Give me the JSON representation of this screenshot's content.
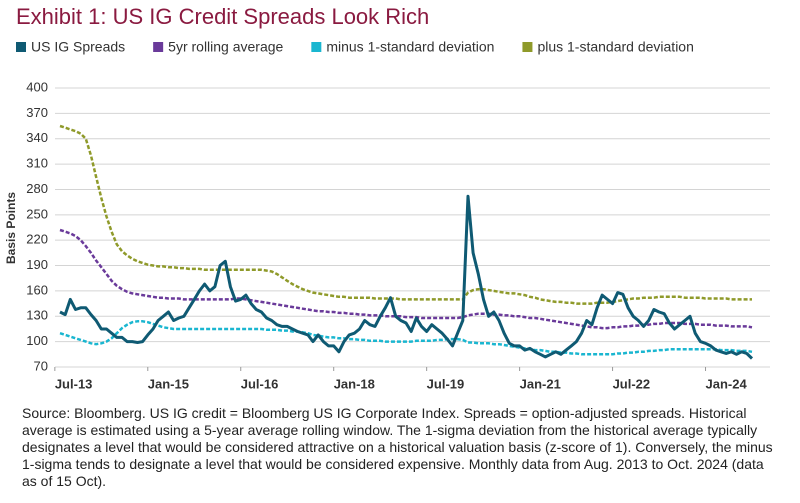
{
  "chart_data": {
    "type": "line",
    "title": "Exhibit 1: US IG Credit Spreads Look Rich",
    "y_label": "Basis Points",
    "note": "Source: Bloomberg. US IG credit = Bloomberg US IG Corporate Index. Spreads = option-adjusted spreads. Historical average is estimated using a 5-year average rolling window. The 1-sigma deviation from the historical average typically designates a level that would be considered attractive on a historical valuation basis (z-score of 1). Conversely, the minus 1-sigma tends to designate a level that would be considered expensive. Monthly data from Aug. 2013 to Oct. 2024 (data as of 15 Oct).",
    "x": [
      "2013-08",
      "2013-09",
      "2013-10",
      "2013-11",
      "2013-12",
      "2014-01",
      "2014-02",
      "2014-03",
      "2014-04",
      "2014-05",
      "2014-06",
      "2014-07",
      "2014-08",
      "2014-09",
      "2014-10",
      "2014-11",
      "2014-12",
      "2015-01",
      "2015-02",
      "2015-03",
      "2015-04",
      "2015-05",
      "2015-06",
      "2015-07",
      "2015-08",
      "2015-09",
      "2015-10",
      "2015-11",
      "2015-12",
      "2016-01",
      "2016-02",
      "2016-03",
      "2016-04",
      "2016-05",
      "2016-06",
      "2016-07",
      "2016-08",
      "2016-09",
      "2016-10",
      "2016-11",
      "2016-12",
      "2017-01",
      "2017-02",
      "2017-03",
      "2017-04",
      "2017-05",
      "2017-06",
      "2017-07",
      "2017-08",
      "2017-09",
      "2017-10",
      "2017-11",
      "2017-12",
      "2018-01",
      "2018-02",
      "2018-03",
      "2018-04",
      "2018-05",
      "2018-06",
      "2018-07",
      "2018-08",
      "2018-09",
      "2018-10",
      "2018-11",
      "2018-12",
      "2019-01",
      "2019-02",
      "2019-03",
      "2019-04",
      "2019-05",
      "2019-06",
      "2019-07",
      "2019-08",
      "2019-09",
      "2019-10",
      "2019-11",
      "2019-12",
      "2020-01",
      "2020-02",
      "2020-03",
      "2020-04",
      "2020-05",
      "2020-06",
      "2020-07",
      "2020-08",
      "2020-09",
      "2020-10",
      "2020-11",
      "2020-12",
      "2021-01",
      "2021-02",
      "2021-03",
      "2021-04",
      "2021-05",
      "2021-06",
      "2021-07",
      "2021-08",
      "2021-09",
      "2021-10",
      "2021-11",
      "2021-12",
      "2022-01",
      "2022-02",
      "2022-03",
      "2022-04",
      "2022-05",
      "2022-06",
      "2022-07",
      "2022-08",
      "2022-09",
      "2022-10",
      "2022-11",
      "2022-12",
      "2023-01",
      "2023-02",
      "2023-03",
      "2023-04",
      "2023-05",
      "2023-06",
      "2023-07",
      "2023-08",
      "2023-09",
      "2023-10",
      "2023-11",
      "2023-12",
      "2024-01",
      "2024-02",
      "2024-03",
      "2024-04",
      "2024-05",
      "2024-06",
      "2024-07",
      "2024-08",
      "2024-09",
      "2024-10"
    ],
    "series": [
      {
        "name": "US IG Spreads",
        "color": "#0f5a73",
        "dashed": false,
        "values": [
          135,
          132,
          150,
          138,
          140,
          140,
          132,
          125,
          115,
          115,
          110,
          105,
          105,
          100,
          100,
          99,
          100,
          108,
          115,
          125,
          130,
          135,
          125,
          128,
          130,
          140,
          150,
          160,
          168,
          160,
          165,
          190,
          195,
          165,
          148,
          150,
          155,
          145,
          138,
          135,
          128,
          125,
          120,
          118,
          118,
          115,
          112,
          110,
          108,
          100,
          108,
          100,
          95,
          95,
          88,
          100,
          108,
          110,
          115,
          125,
          120,
          118,
          130,
          140,
          152,
          130,
          125,
          122,
          112,
          128,
          118,
          112,
          120,
          115,
          110,
          103,
          95,
          110,
          125,
          272,
          205,
          180,
          150,
          130,
          135,
          125,
          110,
          98,
          95,
          95,
          90,
          92,
          88,
          85,
          82,
          85,
          88,
          85,
          90,
          95,
          100,
          110,
          125,
          120,
          140,
          155,
          150,
          145,
          158,
          156,
          140,
          130,
          125,
          118,
          125,
          138,
          135,
          133,
          122,
          115,
          120,
          125,
          130,
          110,
          100,
          98,
          95,
          90,
          88,
          86,
          88,
          85,
          88,
          86,
          80
        ]
      },
      {
        "name": "5yr rolling average",
        "color": "#6a3a9a",
        "dashed": true,
        "values": [
          232,
          230,
          228,
          225,
          220,
          213,
          205,
          196,
          188,
          180,
          172,
          166,
          162,
          159,
          157,
          156,
          155,
          154,
          153,
          152,
          152,
          151,
          151,
          151,
          150,
          150,
          150,
          150,
          150,
          150,
          150,
          150,
          150,
          150,
          151,
          151,
          150,
          149,
          148,
          147,
          146,
          145,
          144,
          143,
          142,
          141,
          140,
          139,
          138,
          137,
          136,
          136,
          135,
          135,
          134,
          134,
          133,
          133,
          132,
          132,
          131,
          131,
          131,
          130,
          130,
          130,
          130,
          129,
          129,
          129,
          128,
          128,
          128,
          128,
          128,
          128,
          128,
          128,
          129,
          131,
          132,
          133,
          133,
          133,
          132,
          132,
          131,
          131,
          130,
          130,
          129,
          128,
          128,
          127,
          126,
          125,
          124,
          123,
          122,
          121,
          120,
          119,
          118,
          117,
          117,
          116,
          116,
          117,
          117,
          118,
          118,
          119,
          119,
          120,
          120,
          121,
          121,
          122,
          122,
          122,
          122,
          121,
          121,
          121,
          120,
          120,
          120,
          119,
          119,
          119,
          118,
          118,
          118,
          118,
          117
        ]
      },
      {
        "name": "minus 1-standard deviation",
        "color": "#1ab6d0",
        "dashed": true,
        "values": [
          110,
          108,
          106,
          104,
          102,
          100,
          98,
          97,
          98,
          100,
          104,
          110,
          116,
          120,
          123,
          124,
          124,
          123,
          121,
          119,
          117,
          116,
          115,
          115,
          115,
          115,
          115,
          115,
          115,
          115,
          115,
          115,
          115,
          115,
          115,
          115,
          115,
          115,
          115,
          115,
          114,
          114,
          114,
          113,
          113,
          112,
          112,
          111,
          110,
          108,
          107,
          106,
          105,
          105,
          104,
          104,
          103,
          103,
          102,
          102,
          101,
          101,
          101,
          100,
          100,
          100,
          100,
          100,
          100,
          101,
          101,
          101,
          101,
          102,
          102,
          103,
          103,
          103,
          102,
          99,
          99,
          98,
          98,
          98,
          97,
          97,
          96,
          95,
          94,
          93,
          92,
          91,
          90,
          90,
          89,
          88,
          88,
          87,
          87,
          86,
          86,
          85,
          85,
          85,
          85,
          85,
          85,
          85,
          86,
          86,
          87,
          87,
          88,
          88,
          89,
          89,
          90,
          90,
          91,
          91,
          91,
          91,
          91,
          91,
          91,
          91,
          91,
          91,
          90,
          90,
          90,
          89,
          89,
          89,
          88
        ]
      },
      {
        "name": "plus 1-standard deviation",
        "color": "#8f9a2a",
        "dashed": true,
        "values": [
          355,
          353,
          351,
          349,
          346,
          340,
          320,
          295,
          270,
          248,
          230,
          215,
          207,
          202,
          198,
          195,
          193,
          191,
          190,
          189,
          189,
          188,
          188,
          187,
          187,
          186,
          186,
          186,
          185,
          185,
          185,
          185,
          185,
          185,
          185,
          185,
          185,
          185,
          185,
          185,
          184,
          183,
          180,
          176,
          172,
          168,
          165,
          162,
          160,
          158,
          157,
          156,
          155,
          154,
          153,
          153,
          152,
          152,
          152,
          152,
          152,
          151,
          151,
          151,
          151,
          151,
          150,
          150,
          150,
          150,
          150,
          150,
          150,
          150,
          150,
          150,
          150,
          150,
          150,
          158,
          161,
          162,
          162,
          161,
          160,
          159,
          158,
          157,
          157,
          156,
          155,
          153,
          152,
          150,
          149,
          148,
          147,
          147,
          146,
          146,
          145,
          145,
          145,
          145,
          146,
          146,
          146,
          147,
          148,
          149,
          150,
          151,
          151,
          152,
          152,
          152,
          153,
          153,
          153,
          153,
          153,
          152,
          152,
          152,
          152,
          151,
          151,
          151,
          151,
          151,
          150,
          150,
          150,
          150,
          150
        ]
      }
    ],
    "xticks": [
      {
        "value": "2013-07",
        "label": "Jul-13"
      },
      {
        "value": "2015-01",
        "label": "Jan-15"
      },
      {
        "value": "2016-07",
        "label": "Jul-16"
      },
      {
        "value": "2018-01",
        "label": "Jan-18"
      },
      {
        "value": "2019-07",
        "label": "Jul-19"
      },
      {
        "value": "2021-01",
        "label": "Jan-21"
      },
      {
        "value": "2022-07",
        "label": "Jul-22"
      },
      {
        "value": "2024-01",
        "label": "Jan-24"
      }
    ],
    "ylim": [
      70,
      400
    ],
    "yticks": [
      70,
      100,
      130,
      160,
      190,
      220,
      250,
      280,
      310,
      340,
      370,
      400
    ],
    "grid": true,
    "legend": "top"
  }
}
